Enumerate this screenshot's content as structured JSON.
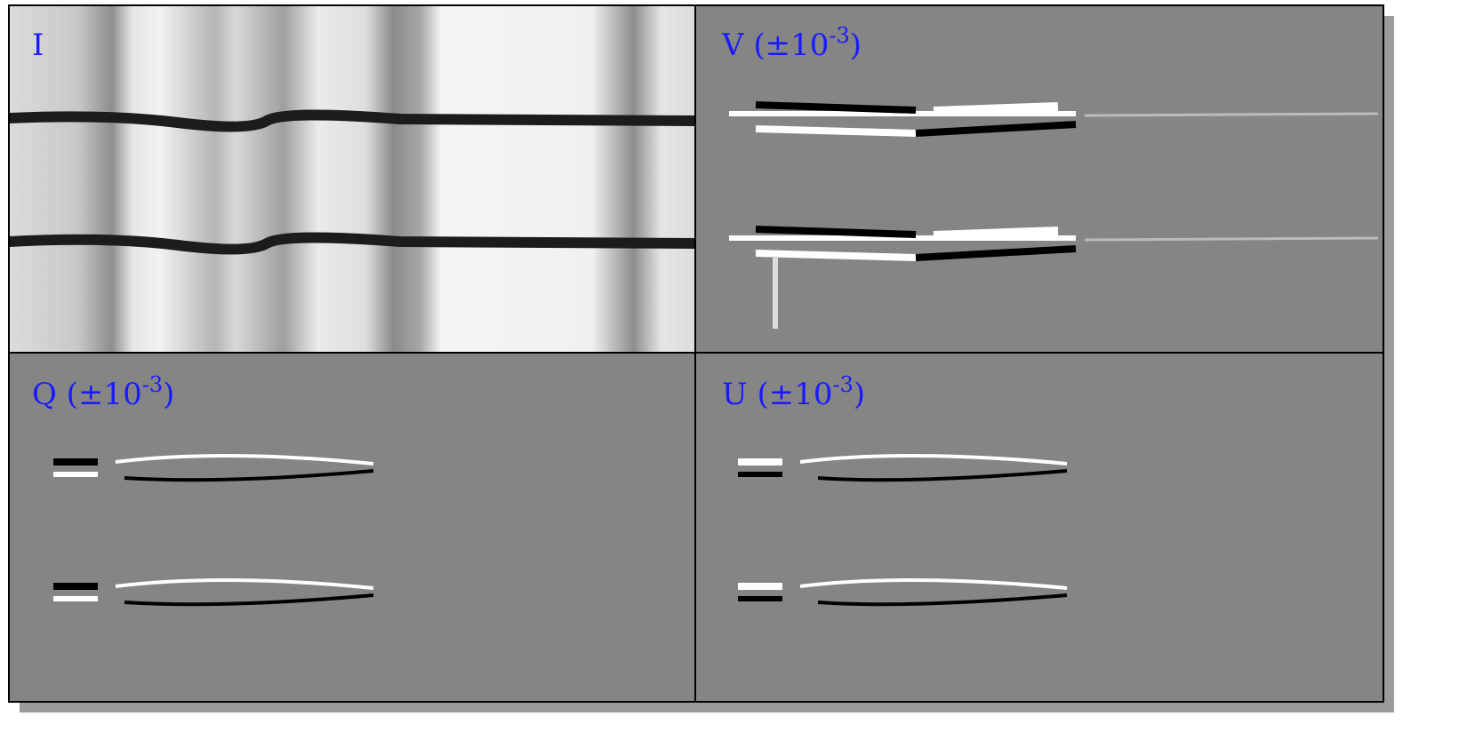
{
  "panels": [
    {
      "label": "I"
    },
    {
      "label": "V (±10",
      "exponent": "-3",
      "suffix": ")"
    },
    {
      "label": "Q (±10",
      "exponent": "-3",
      "suffix": ")"
    },
    {
      "label": "U (±10",
      "exponent": "-3",
      "suffix": ")"
    }
  ]
}
